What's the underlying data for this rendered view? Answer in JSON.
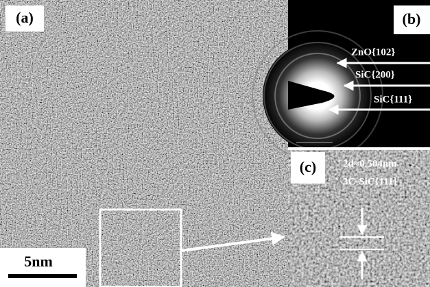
{
  "panels": {
    "a": {
      "label": "(a)",
      "scale_bar": "5nm"
    },
    "b": {
      "label": "(b)",
      "rings": [
        "ZnO{102}",
        "SiC{200}",
        "SiC{111}"
      ]
    },
    "c": {
      "label": "(c)",
      "annotation": [
        "2d≈0.504nm",
        "3C-SiC{111}"
      ]
    }
  }
}
